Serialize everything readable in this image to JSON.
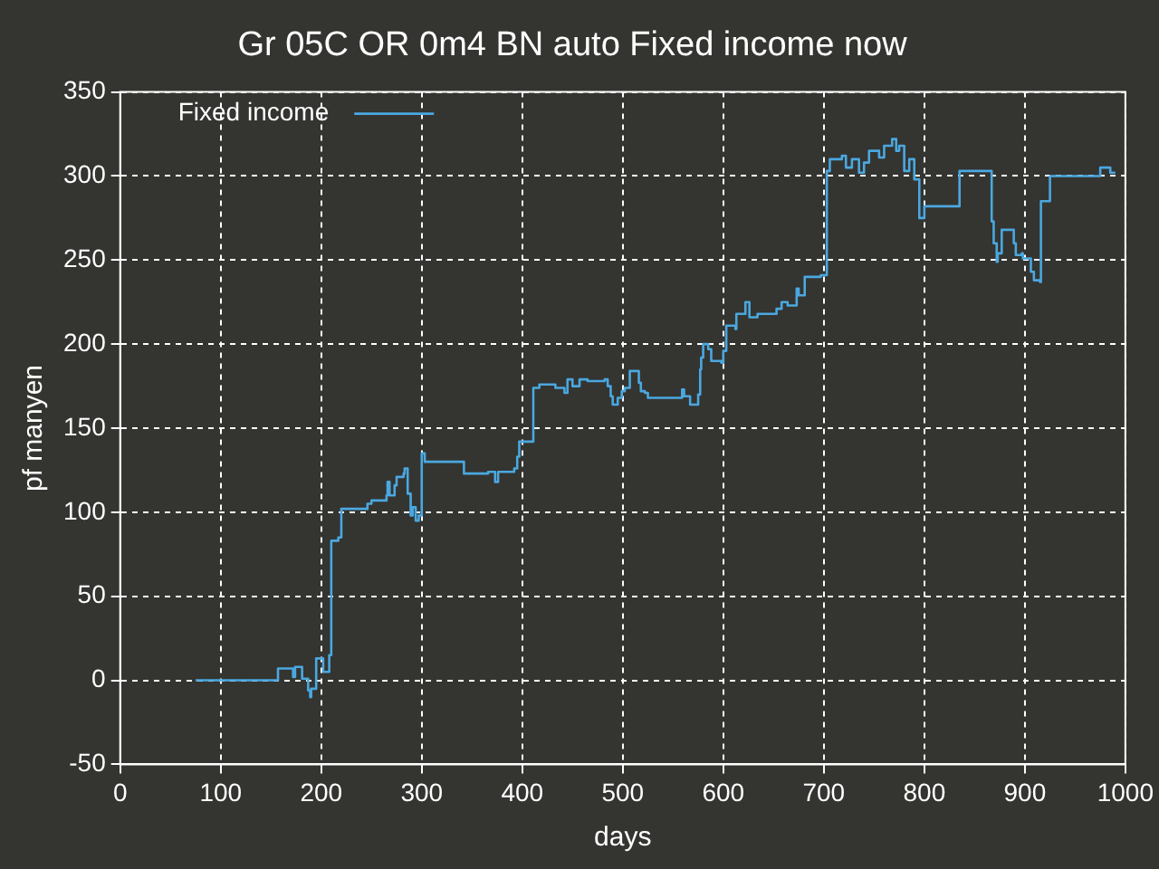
{
  "chart_data": {
    "type": "step",
    "title": "Gr 05C OR 0m4 BN auto Fixed income now",
    "xlabel": "days",
    "ylabel": "pf manyen",
    "x": [
      75,
      157,
      172,
      174,
      181,
      187,
      189,
      190,
      195,
      202,
      208,
      210,
      217,
      220,
      246,
      250,
      265,
      266,
      268,
      273,
      275,
      282,
      283,
      286,
      289,
      291,
      294,
      297,
      300,
      303,
      335,
      342,
      366,
      373,
      376,
      392,
      395,
      397,
      411,
      417,
      433,
      442,
      445,
      450,
      457,
      465,
      482,
      485,
      488,
      490,
      495,
      499,
      502,
      507,
      516,
      518,
      522,
      525,
      559,
      561,
      567,
      575,
      577,
      578,
      580,
      585,
      588,
      598,
      600,
      603,
      612,
      613,
      622,
      626,
      634,
      653,
      658,
      664,
      673,
      675,
      681,
      697,
      700,
      703,
      706,
      718,
      722,
      728,
      735,
      740,
      745,
      755,
      760,
      768,
      772,
      775,
      780,
      785,
      790,
      795,
      800,
      835,
      862,
      867,
      869,
      872,
      873,
      877,
      887,
      889,
      891,
      897,
      898,
      906,
      909,
      915,
      916,
      925,
      975,
      985,
      990
    ],
    "series": [
      {
        "name": "Fixed income",
        "color": "#4aa8e0",
        "values": [
          0,
          7,
          2,
          8,
          1,
          -6,
          -10,
          -5,
          13,
          5,
          15,
          83,
          85,
          102,
          105,
          107,
          110,
          118,
          110,
          116,
          121,
          123,
          126,
          111,
          98,
          103,
          95,
          98,
          135,
          130,
          130,
          123,
          124,
          118,
          124,
          126,
          133,
          142,
          174,
          176,
          174,
          171,
          179,
          175,
          179,
          178,
          179,
          175,
          169,
          164,
          168,
          172,
          174,
          184,
          177,
          172,
          171,
          168,
          173,
          169,
          164,
          170,
          185,
          192,
          200,
          197,
          190,
          189,
          196,
          211,
          209,
          218,
          225,
          216,
          218,
          221,
          225,
          223,
          233,
          229,
          240,
          241,
          241,
          303,
          310,
          312,
          305,
          310,
          302,
          308,
          315,
          311,
          318,
          322,
          315,
          318,
          303,
          310,
          298,
          275,
          282,
          303,
          303,
          273,
          260,
          249,
          254,
          268,
          268,
          260,
          253,
          254,
          251,
          243,
          238,
          237,
          285,
          300,
          305,
          302,
          302
        ]
      }
    ],
    "xlim": [
      0,
      1000
    ],
    "xticks": [
      0,
      100,
      200,
      300,
      400,
      500,
      600,
      700,
      800,
      900,
      1000
    ],
    "ylim": [
      -50,
      350
    ],
    "yticks": [
      -50,
      0,
      50,
      100,
      150,
      200,
      250,
      300,
      350
    ],
    "grid": true,
    "legend": "top left",
    "marker": "none",
    "line_style": "solid"
  }
}
